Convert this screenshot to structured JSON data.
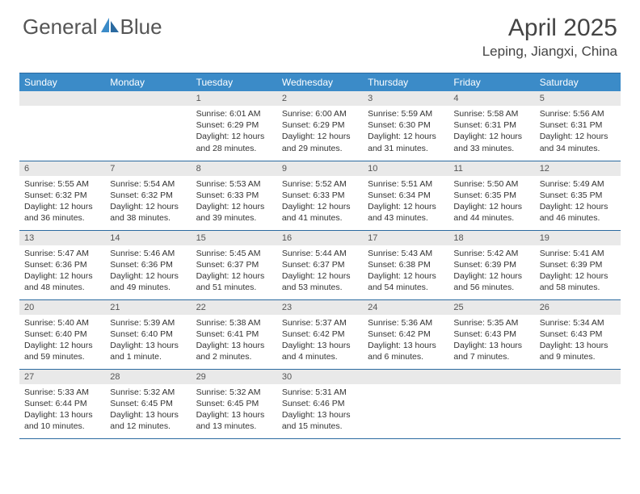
{
  "brand": {
    "part1": "General",
    "part2": "Blue"
  },
  "title": "April 2025",
  "location": "Leping, Jiangxi, China",
  "colors": {
    "header_bg": "#3b8bc8",
    "header_border": "#2b6aa0",
    "dayrow_bg": "#e9e9e9",
    "logo_accent": "#3b8bc8"
  },
  "weekdays": [
    "Sunday",
    "Monday",
    "Tuesday",
    "Wednesday",
    "Thursday",
    "Friday",
    "Saturday"
  ],
  "weeks": [
    [
      null,
      null,
      {
        "n": "1",
        "sr": "6:01 AM",
        "ss": "6:29 PM",
        "dl": "12 hours and 28 minutes."
      },
      {
        "n": "2",
        "sr": "6:00 AM",
        "ss": "6:29 PM",
        "dl": "12 hours and 29 minutes."
      },
      {
        "n": "3",
        "sr": "5:59 AM",
        "ss": "6:30 PM",
        "dl": "12 hours and 31 minutes."
      },
      {
        "n": "4",
        "sr": "5:58 AM",
        "ss": "6:31 PM",
        "dl": "12 hours and 33 minutes."
      },
      {
        "n": "5",
        "sr": "5:56 AM",
        "ss": "6:31 PM",
        "dl": "12 hours and 34 minutes."
      }
    ],
    [
      {
        "n": "6",
        "sr": "5:55 AM",
        "ss": "6:32 PM",
        "dl": "12 hours and 36 minutes."
      },
      {
        "n": "7",
        "sr": "5:54 AM",
        "ss": "6:32 PM",
        "dl": "12 hours and 38 minutes."
      },
      {
        "n": "8",
        "sr": "5:53 AM",
        "ss": "6:33 PM",
        "dl": "12 hours and 39 minutes."
      },
      {
        "n": "9",
        "sr": "5:52 AM",
        "ss": "6:33 PM",
        "dl": "12 hours and 41 minutes."
      },
      {
        "n": "10",
        "sr": "5:51 AM",
        "ss": "6:34 PM",
        "dl": "12 hours and 43 minutes."
      },
      {
        "n": "11",
        "sr": "5:50 AM",
        "ss": "6:35 PM",
        "dl": "12 hours and 44 minutes."
      },
      {
        "n": "12",
        "sr": "5:49 AM",
        "ss": "6:35 PM",
        "dl": "12 hours and 46 minutes."
      }
    ],
    [
      {
        "n": "13",
        "sr": "5:47 AM",
        "ss": "6:36 PM",
        "dl": "12 hours and 48 minutes."
      },
      {
        "n": "14",
        "sr": "5:46 AM",
        "ss": "6:36 PM",
        "dl": "12 hours and 49 minutes."
      },
      {
        "n": "15",
        "sr": "5:45 AM",
        "ss": "6:37 PM",
        "dl": "12 hours and 51 minutes."
      },
      {
        "n": "16",
        "sr": "5:44 AM",
        "ss": "6:37 PM",
        "dl": "12 hours and 53 minutes."
      },
      {
        "n": "17",
        "sr": "5:43 AM",
        "ss": "6:38 PM",
        "dl": "12 hours and 54 minutes."
      },
      {
        "n": "18",
        "sr": "5:42 AM",
        "ss": "6:39 PM",
        "dl": "12 hours and 56 minutes."
      },
      {
        "n": "19",
        "sr": "5:41 AM",
        "ss": "6:39 PM",
        "dl": "12 hours and 58 minutes."
      }
    ],
    [
      {
        "n": "20",
        "sr": "5:40 AM",
        "ss": "6:40 PM",
        "dl": "12 hours and 59 minutes."
      },
      {
        "n": "21",
        "sr": "5:39 AM",
        "ss": "6:40 PM",
        "dl": "13 hours and 1 minute."
      },
      {
        "n": "22",
        "sr": "5:38 AM",
        "ss": "6:41 PM",
        "dl": "13 hours and 2 minutes."
      },
      {
        "n": "23",
        "sr": "5:37 AM",
        "ss": "6:42 PM",
        "dl": "13 hours and 4 minutes."
      },
      {
        "n": "24",
        "sr": "5:36 AM",
        "ss": "6:42 PM",
        "dl": "13 hours and 6 minutes."
      },
      {
        "n": "25",
        "sr": "5:35 AM",
        "ss": "6:43 PM",
        "dl": "13 hours and 7 minutes."
      },
      {
        "n": "26",
        "sr": "5:34 AM",
        "ss": "6:43 PM",
        "dl": "13 hours and 9 minutes."
      }
    ],
    [
      {
        "n": "27",
        "sr": "5:33 AM",
        "ss": "6:44 PM",
        "dl": "13 hours and 10 minutes."
      },
      {
        "n": "28",
        "sr": "5:32 AM",
        "ss": "6:45 PM",
        "dl": "13 hours and 12 minutes."
      },
      {
        "n": "29",
        "sr": "5:32 AM",
        "ss": "6:45 PM",
        "dl": "13 hours and 13 minutes."
      },
      {
        "n": "30",
        "sr": "5:31 AM",
        "ss": "6:46 PM",
        "dl": "13 hours and 15 minutes."
      },
      null,
      null,
      null
    ]
  ]
}
